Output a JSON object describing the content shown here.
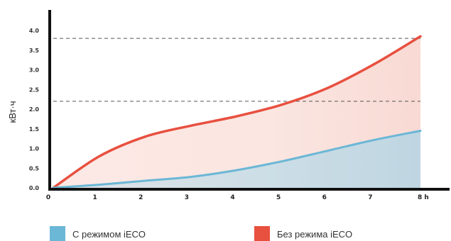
{
  "chart_data": {
    "type": "area",
    "title": "",
    "ylabel": "кВт·ч",
    "xlabel": "",
    "x_tick_labels": [
      "0",
      "1",
      "2",
      "3",
      "4",
      "5",
      "6",
      "7",
      "8 h"
    ],
    "x": [
      0,
      1,
      2,
      3,
      4,
      5,
      6,
      7,
      8
    ],
    "xlim": [
      0,
      8
    ],
    "y_tick_labels": [
      "0.0",
      "0.5",
      "1.0",
      "1.5",
      "2.0",
      "2.5",
      "3.0",
      "3.5",
      "4.0"
    ],
    "ylim": [
      0,
      4.0
    ],
    "reference_lines": [
      2.2,
      3.8
    ],
    "series": [
      {
        "name": "С режимом iECO",
        "color": "#6bb7d6",
        "values": [
          0.0,
          0.08,
          0.18,
          0.28,
          0.45,
          0.68,
          0.95,
          1.22,
          1.45
        ]
      },
      {
        "name": "Без режима iECO",
        "color": "#e8503f",
        "values": [
          0.0,
          0.8,
          1.3,
          1.58,
          1.82,
          2.12,
          2.55,
          3.15,
          3.85
        ]
      }
    ],
    "legend": {
      "position": "bottom",
      "items": [
        "С режимом iECO",
        "Без режима iECO"
      ]
    }
  }
}
